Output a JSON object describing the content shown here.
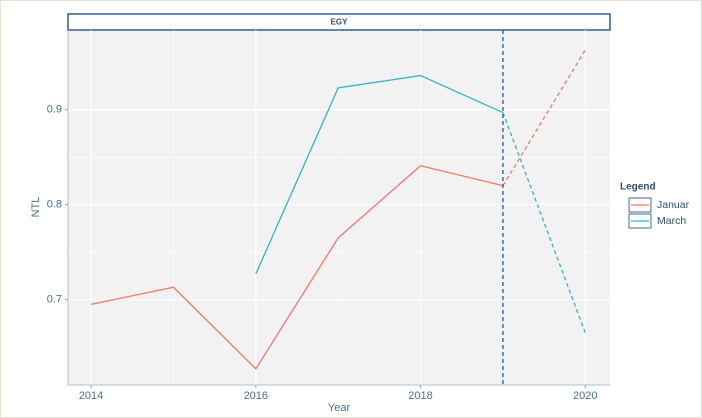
{
  "chart_data": {
    "type": "line",
    "facet": "EGY",
    "x": [
      2014,
      2015,
      2016,
      2017,
      2018,
      2019,
      2020
    ],
    "series": [
      {
        "name": "Januar",
        "color": "#f8766d",
        "values": [
          0.695,
          0.713,
          0.627,
          0.765,
          0.841,
          0.82,
          0.963
        ]
      },
      {
        "name": "March",
        "color": "#2fb7c0",
        "values": [
          null,
          null,
          0.727,
          0.923,
          0.936,
          0.897,
          0.665
        ]
      }
    ],
    "xlabel": "Year",
    "ylabel": "NTL",
    "xlim": [
      2013.72,
      2020.3
    ],
    "xticks": [
      2014,
      2016,
      2018,
      2020
    ],
    "ylim": [
      0.61,
      0.984
    ],
    "yticks": [
      0.7,
      0.8,
      0.9
    ],
    "vline": 2019,
    "vline_color": "#3e6a99",
    "legend_title": "Legend",
    "legend": "right",
    "grid": true
  }
}
